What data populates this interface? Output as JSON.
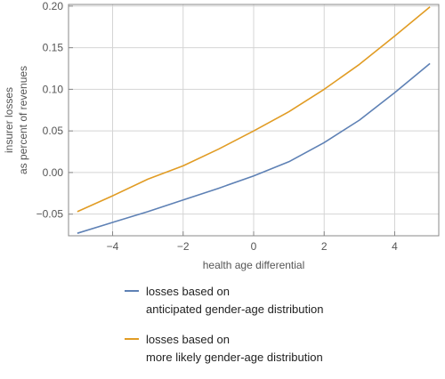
{
  "chart_data": {
    "type": "line",
    "xlabel": "health age differential",
    "ylabel_line1": "insurer losses",
    "ylabel_line2": "as percent of revenues",
    "xlim": [
      -5.25,
      5.25
    ],
    "ylim": [
      -0.076,
      0.202
    ],
    "x_ticks": [
      -4,
      -2,
      0,
      2,
      4
    ],
    "x_tick_labels": [
      "−4",
      "−2",
      "0",
      "2",
      "4"
    ],
    "y_ticks": [
      -0.05,
      0.0,
      0.05,
      0.1,
      0.15,
      0.2
    ],
    "y_tick_labels": [
      "−0.05",
      "0.00",
      "0.05",
      "0.10",
      "0.15",
      "0.20"
    ],
    "grid": true,
    "legend_position": "bottom",
    "series": [
      {
        "legend_line1": "losses based on",
        "legend_line2": "anticipated gender-age distribution",
        "color": "#5e81b5",
        "x": [
          -5,
          -4,
          -3,
          -2,
          -1,
          0,
          1,
          2,
          3,
          4,
          5
        ],
        "y": [
          -0.073,
          -0.06,
          -0.047,
          -0.033,
          -0.019,
          -0.004,
          0.013,
          0.036,
          0.063,
          0.096,
          0.131
        ]
      },
      {
        "legend_line1": "losses based on",
        "legend_line2": "more likely gender-age distribution",
        "color": "#e19c24",
        "x": [
          -5,
          -4,
          -3,
          -2,
          -1,
          0,
          1,
          2,
          3,
          4,
          5
        ],
        "y": [
          -0.047,
          -0.028,
          -0.008,
          0.008,
          0.028,
          0.05,
          0.073,
          0.1,
          0.13,
          0.164,
          0.199
        ]
      }
    ]
  }
}
